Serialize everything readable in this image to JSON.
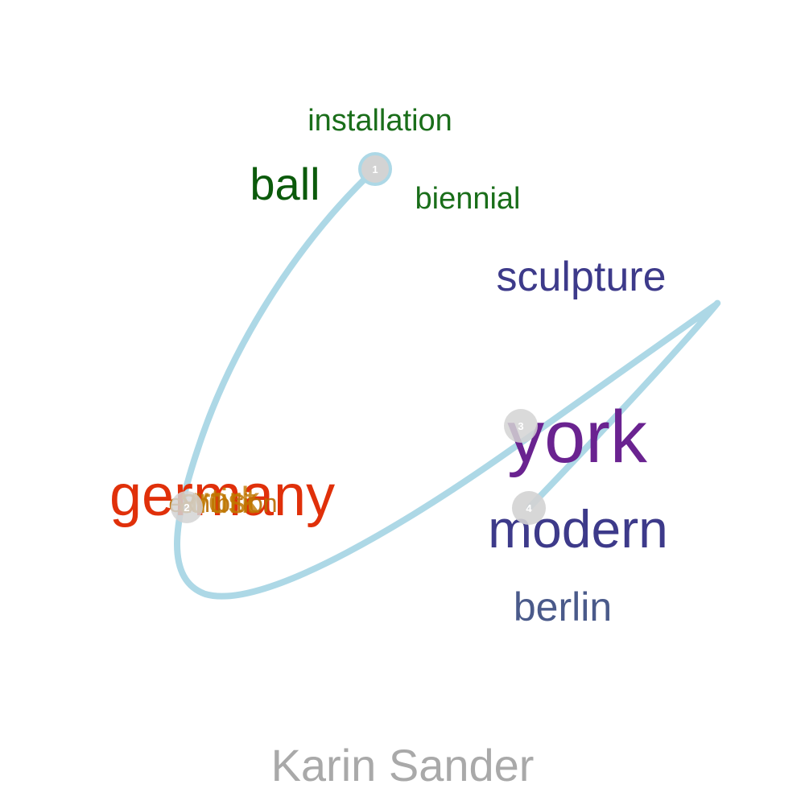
{
  "caption": {
    "text": "Karin Sander",
    "color": "#a9a9a9"
  },
  "path": {
    "color": "#add8e6"
  },
  "nodes": [
    {
      "label": "1",
      "fill": "#d3d3d3",
      "ring": "#add8e6"
    },
    {
      "label": "2",
      "fill": "#d3d3d3"
    },
    {
      "label": "3",
      "fill": "#d3d3d3"
    },
    {
      "label": "4",
      "fill": "#d3d3d3"
    }
  ],
  "words": [
    {
      "text": "installation",
      "color": "#1a6e1a"
    },
    {
      "text": "ball",
      "color": "#0b5a0b"
    },
    {
      "text": "biennial",
      "color": "#1a6e1a"
    },
    {
      "text": "sculpture",
      "color": "#3d3a8a"
    },
    {
      "text": "york",
      "color": "#6a2390"
    },
    {
      "text": "modern",
      "color": "#3d3a8a"
    },
    {
      "text": "berlin",
      "color": "#4a5a8a"
    },
    {
      "text": "germany",
      "color": "#e0300a"
    },
    {
      "text": "exhibition",
      "color": "#b86a00"
    },
    {
      "text": "artist",
      "color": "#c07800"
    },
    {
      "text": "work",
      "color": "#c07800"
    }
  ]
}
